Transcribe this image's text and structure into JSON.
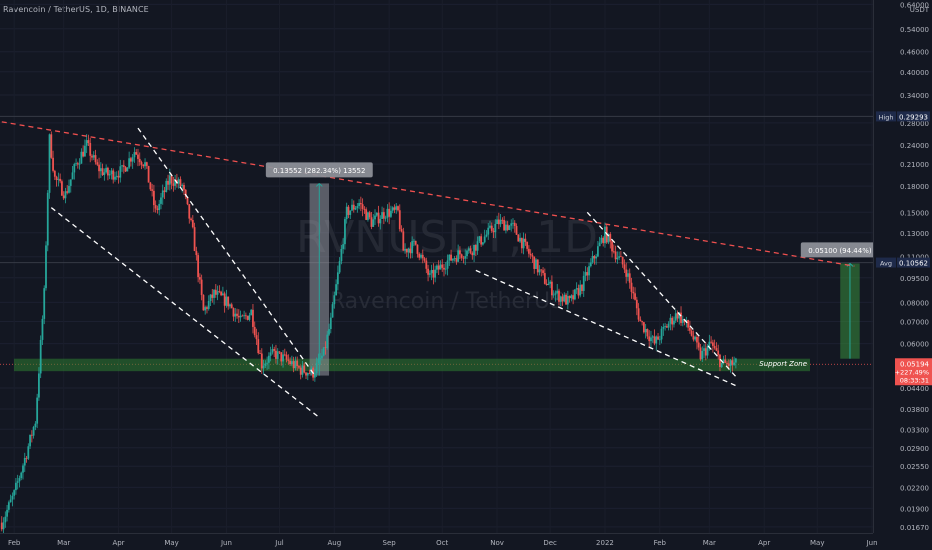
{
  "header": {
    "title": "Ravencoin / TetherUS, 1D, BINANCE"
  },
  "watermark": {
    "symbol": "RVNUSDT, 1D",
    "name": "Ravencoin / TetherUS"
  },
  "axis": {
    "currency": "USDT",
    "price_ticks": [
      {
        "label": "0.64000",
        "value": 0.64
      },
      {
        "label": "0.54000",
        "value": 0.54
      },
      {
        "label": "0.46000",
        "value": 0.46
      },
      {
        "label": "0.40000",
        "value": 0.4
      },
      {
        "label": "0.34000",
        "value": 0.34
      },
      {
        "label": "0.28000",
        "value": 0.28
      },
      {
        "label": "0.24000",
        "value": 0.24
      },
      {
        "label": "0.21000",
        "value": 0.21
      },
      {
        "label": "0.18000",
        "value": 0.18
      },
      {
        "label": "0.15000",
        "value": 0.15
      },
      {
        "label": "0.13000",
        "value": 0.13
      },
      {
        "label": "0.11000",
        "value": 0.11
      },
      {
        "label": "0.09500",
        "value": 0.095
      },
      {
        "label": "0.08000",
        "value": 0.08
      },
      {
        "label": "0.07000",
        "value": 0.07
      },
      {
        "label": "0.06000",
        "value": 0.06
      },
      {
        "label": "0.04400",
        "value": 0.044
      },
      {
        "label": "0.03800",
        "value": 0.038
      },
      {
        "label": "0.03300",
        "value": 0.033
      },
      {
        "label": "0.02900",
        "value": 0.029
      },
      {
        "label": "0.02550",
        "value": 0.0255
      },
      {
        "label": "0.02200",
        "value": 0.022
      },
      {
        "label": "0.01900",
        "value": 0.019
      },
      {
        "label": "0.01670",
        "value": 0.0167
      }
    ],
    "time_ticks": [
      {
        "label": "Feb",
        "date": "2021-02-01"
      },
      {
        "label": "Mar",
        "date": "2021-03-01"
      },
      {
        "label": "Apr",
        "date": "2021-04-01"
      },
      {
        "label": "May",
        "date": "2021-05-01"
      },
      {
        "label": "Jun",
        "date": "2021-06-01"
      },
      {
        "label": "Jul",
        "date": "2021-07-01"
      },
      {
        "label": "Aug",
        "date": "2021-08-01"
      },
      {
        "label": "Sep",
        "date": "2021-09-01"
      },
      {
        "label": "Oct",
        "date": "2021-10-01"
      },
      {
        "label": "Nov",
        "date": "2021-11-01"
      },
      {
        "label": "Dec",
        "date": "2021-12-01"
      },
      {
        "label": "2022",
        "date": "2022-01-01"
      },
      {
        "label": "Feb",
        "date": "2022-02-01"
      },
      {
        "label": "Mar",
        "date": "2022-03-01"
      },
      {
        "label": "Apr",
        "date": "2022-04-01"
      },
      {
        "label": "May",
        "date": "2022-05-01"
      },
      {
        "label": "Jun",
        "date": "2022-06-01"
      }
    ]
  },
  "markers": {
    "high": {
      "label": "High",
      "value": "0.29293",
      "price": 0.29293
    },
    "avg": {
      "label": "Avg",
      "value": "0.10562",
      "price": 0.10562
    },
    "last": {
      "value": "0.05194",
      "change": "+227.49%",
      "countdown": "08:33:31",
      "price": 0.05194
    }
  },
  "annotations": {
    "support_zone": {
      "label": "Support Zone",
      "low": 0.0495,
      "high": 0.054
    },
    "measure_1": {
      "label": "0.13552 (282.34%) 13552",
      "date_from": "2021-07-18",
      "date_to": "2021-07-29",
      "low": 0.048,
      "high": 0.1835
    },
    "measure_2": {
      "label": "0.05100 (94.44%) 5100",
      "date_from": "2022-05-14",
      "date_to": "2022-05-25",
      "low": 0.054,
      "high": 0.105
    },
    "resistance_line": {
      "from": {
        "date": "2021-01-20",
        "price": 0.285
      },
      "to": {
        "date": "2022-05-22",
        "price": 0.103
      }
    },
    "channel_1_upper": {
      "from": {
        "date": "2021-04-12",
        "price": 0.27
      },
      "to": {
        "date": "2021-07-21",
        "price": 0.048
      }
    },
    "channel_1_lower": {
      "from": {
        "date": "2021-02-22",
        "price": 0.155
      },
      "to": {
        "date": "2021-07-23",
        "price": 0.036
      }
    },
    "channel_2_upper": {
      "from": {
        "date": "2021-12-22",
        "price": 0.15
      },
      "to": {
        "date": "2022-03-17",
        "price": 0.047
      }
    },
    "channel_2_lower": {
      "from": {
        "date": "2021-10-20",
        "price": 0.1
      },
      "to": {
        "date": "2022-03-17",
        "price": 0.0445
      }
    }
  },
  "colors": {
    "up": "#26a69a",
    "down": "#ef5350",
    "background": "#131722",
    "support": "#2e7d32",
    "resistance": "#f0504f"
  },
  "chart_data": {
    "type": "candlestick",
    "title": "Ravencoin / TetherUS, 1D, BINANCE",
    "ylabel": "USDT",
    "xlim": [
      "2021-01-24",
      "2022-06-10"
    ],
    "ylim": [
      0.016,
      0.66
    ],
    "log_scale": true,
    "close_path": [
      [
        "2021-01-25",
        0.0172
      ],
      [
        "2021-02-01",
        0.021
      ],
      [
        "2021-02-08",
        0.028
      ],
      [
        "2021-02-13",
        0.035
      ],
      [
        "2021-02-18",
        0.085
      ],
      [
        "2021-02-21",
        0.25
      ],
      [
        "2021-02-24",
        0.19
      ],
      [
        "2021-03-02",
        0.17
      ],
      [
        "2021-03-08",
        0.21
      ],
      [
        "2021-03-14",
        0.24
      ],
      [
        "2021-03-20",
        0.205
      ],
      [
        "2021-03-26",
        0.195
      ],
      [
        "2021-04-03",
        0.2
      ],
      [
        "2021-04-10",
        0.23
      ],
      [
        "2021-04-16",
        0.21
      ],
      [
        "2021-04-22",
        0.15
      ],
      [
        "2021-04-30",
        0.19
      ],
      [
        "2021-05-07",
        0.18
      ],
      [
        "2021-05-13",
        0.13
      ],
      [
        "2021-05-19",
        0.075
      ],
      [
        "2021-05-25",
        0.085
      ],
      [
        "2021-06-02",
        0.08
      ],
      [
        "2021-06-09",
        0.07
      ],
      [
        "2021-06-15",
        0.075
      ],
      [
        "2021-06-21",
        0.052
      ],
      [
        "2021-06-28",
        0.056
      ],
      [
        "2021-07-06",
        0.053
      ],
      [
        "2021-07-13",
        0.05
      ],
      [
        "2021-07-20",
        0.049
      ],
      [
        "2021-07-26",
        0.056
      ],
      [
        "2021-07-30",
        0.07
      ],
      [
        "2021-08-04",
        0.105
      ],
      [
        "2021-08-08",
        0.15
      ],
      [
        "2021-08-15",
        0.16
      ],
      [
        "2021-08-22",
        0.14
      ],
      [
        "2021-08-30",
        0.15
      ],
      [
        "2021-09-06",
        0.15
      ],
      [
        "2021-09-09",
        0.115
      ],
      [
        "2021-09-16",
        0.12
      ],
      [
        "2021-09-24",
        0.095
      ],
      [
        "2021-10-02",
        0.105
      ],
      [
        "2021-10-10",
        0.112
      ],
      [
        "2021-10-17",
        0.115
      ],
      [
        "2021-10-24",
        0.125
      ],
      [
        "2021-11-02",
        0.14
      ],
      [
        "2021-11-10",
        0.135
      ],
      [
        "2021-11-18",
        0.115
      ],
      [
        "2021-11-27",
        0.095
      ],
      [
        "2021-12-04",
        0.085
      ],
      [
        "2021-12-12",
        0.08
      ],
      [
        "2021-12-19",
        0.09
      ],
      [
        "2021-12-26",
        0.11
      ],
      [
        "2022-01-01",
        0.13
      ],
      [
        "2022-01-06",
        0.115
      ],
      [
        "2022-01-13",
        0.1
      ],
      [
        "2022-01-21",
        0.07
      ],
      [
        "2022-01-29",
        0.06
      ],
      [
        "2022-02-05",
        0.068
      ],
      [
        "2022-02-11",
        0.074
      ],
      [
        "2022-02-18",
        0.066
      ],
      [
        "2022-02-24",
        0.055
      ],
      [
        "2022-03-02",
        0.06
      ],
      [
        "2022-03-08",
        0.052
      ],
      [
        "2022-03-16",
        0.0519
      ]
    ]
  }
}
